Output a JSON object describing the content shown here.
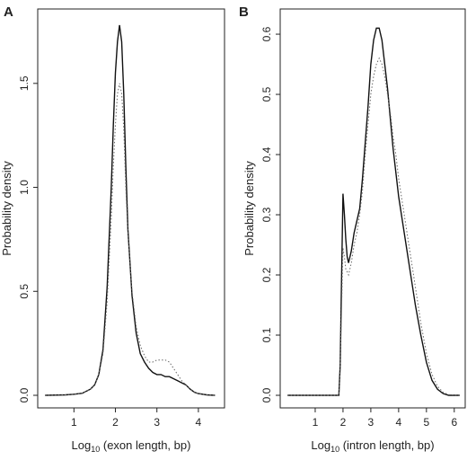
{
  "chart_data": [
    {
      "type": "line",
      "panel_label": "A",
      "title": "",
      "xlabel_prefix": "Log",
      "xlabel_sub": "10",
      "xlabel_rest": " (exon length, bp)",
      "ylabel": "Probability density",
      "xlim": [
        0.3,
        4.5
      ],
      "ylim": [
        0,
        1.78
      ],
      "xticks": [
        1,
        2,
        3,
        4
      ],
      "yticks": [
        0.0,
        0.5,
        1.0,
        1.5
      ],
      "ytick_labels": [
        "0.0",
        "0.5",
        "1.0",
        "1.5"
      ],
      "legend": "none",
      "grid": false,
      "series": [
        {
          "style": "solid",
          "x": [
            0.3,
            0.8,
            1.0,
            1.2,
            1.4,
            1.5,
            1.6,
            1.7,
            1.8,
            1.9,
            1.95,
            2.0,
            2.05,
            2.1,
            2.15,
            2.2,
            2.25,
            2.3,
            2.4,
            2.5,
            2.6,
            2.7,
            2.8,
            2.9,
            3.0,
            3.1,
            3.2,
            3.3,
            3.4,
            3.5,
            3.6,
            3.7,
            3.8,
            3.9,
            4.0,
            4.2,
            4.4
          ],
          "y": [
            0.0,
            0.002,
            0.005,
            0.01,
            0.03,
            0.05,
            0.1,
            0.22,
            0.52,
            1.0,
            1.3,
            1.55,
            1.7,
            1.78,
            1.7,
            1.45,
            1.1,
            0.8,
            0.48,
            0.3,
            0.2,
            0.16,
            0.13,
            0.11,
            0.1,
            0.1,
            0.09,
            0.09,
            0.08,
            0.07,
            0.06,
            0.05,
            0.03,
            0.015,
            0.008,
            0.002,
            0.0
          ]
        },
        {
          "style": "dotted",
          "x": [
            0.3,
            0.8,
            1.0,
            1.2,
            1.4,
            1.5,
            1.6,
            1.7,
            1.8,
            1.9,
            1.95,
            2.0,
            2.05,
            2.1,
            2.15,
            2.2,
            2.25,
            2.3,
            2.4,
            2.5,
            2.6,
            2.7,
            2.8,
            2.9,
            3.0,
            3.1,
            3.2,
            3.3,
            3.4,
            3.5,
            3.6,
            3.7,
            3.8,
            3.9,
            4.0,
            4.2,
            4.4
          ],
          "y": [
            0.0,
            0.002,
            0.005,
            0.01,
            0.03,
            0.05,
            0.1,
            0.2,
            0.45,
            0.85,
            1.1,
            1.3,
            1.45,
            1.5,
            1.45,
            1.28,
            1.0,
            0.78,
            0.5,
            0.33,
            0.24,
            0.19,
            0.16,
            0.16,
            0.17,
            0.17,
            0.17,
            0.16,
            0.13,
            0.1,
            0.07,
            0.05,
            0.03,
            0.015,
            0.008,
            0.002,
            0.0
          ]
        }
      ]
    },
    {
      "type": "line",
      "panel_label": "B",
      "title": "",
      "xlabel_prefix": "Log",
      "xlabel_sub": "10",
      "xlabel_rest": " (intron length, bp)",
      "ylabel": "Probability density",
      "xlim": [
        0.0,
        6.2
      ],
      "ylim": [
        0,
        0.615
      ],
      "xticks": [
        1,
        2,
        3,
        4,
        5,
        6
      ],
      "yticks": [
        0.0,
        0.1,
        0.2,
        0.3,
        0.4,
        0.5,
        0.6
      ],
      "ytick_labels": [
        "0.0",
        "0.1",
        "0.2",
        "0.3",
        "0.4",
        "0.5",
        "0.6"
      ],
      "legend": "none",
      "grid": false,
      "series": [
        {
          "style": "solid",
          "x": [
            0.0,
            1.5,
            1.85,
            1.9,
            1.95,
            2.0,
            2.05,
            2.1,
            2.15,
            2.2,
            2.3,
            2.4,
            2.5,
            2.6,
            2.7,
            2.8,
            2.9,
            3.0,
            3.1,
            3.2,
            3.3,
            3.4,
            3.5,
            3.6,
            3.7,
            3.8,
            3.9,
            4.0,
            4.2,
            4.4,
            4.6,
            4.8,
            5.0,
            5.2,
            5.4,
            5.6,
            5.8,
            6.2
          ],
          "y": [
            0.0,
            0.0,
            0.0,
            0.05,
            0.2,
            0.335,
            0.3,
            0.26,
            0.23,
            0.22,
            0.24,
            0.27,
            0.29,
            0.31,
            0.36,
            0.42,
            0.48,
            0.55,
            0.59,
            0.61,
            0.61,
            0.59,
            0.55,
            0.51,
            0.46,
            0.41,
            0.37,
            0.33,
            0.27,
            0.21,
            0.15,
            0.1,
            0.055,
            0.025,
            0.01,
            0.003,
            0.0,
            0.0
          ]
        },
        {
          "style": "dotted",
          "x": [
            0.0,
            1.5,
            1.85,
            1.9,
            1.95,
            2.0,
            2.05,
            2.1,
            2.15,
            2.2,
            2.3,
            2.4,
            2.5,
            2.6,
            2.7,
            2.8,
            2.9,
            3.0,
            3.1,
            3.2,
            3.3,
            3.4,
            3.5,
            3.6,
            3.7,
            3.8,
            3.9,
            4.0,
            4.2,
            4.4,
            4.6,
            4.8,
            5.0,
            5.2,
            5.4,
            5.6,
            5.8,
            6.2
          ],
          "y": [
            0.0,
            0.0,
            0.0,
            0.04,
            0.15,
            0.245,
            0.23,
            0.21,
            0.205,
            0.2,
            0.22,
            0.25,
            0.27,
            0.3,
            0.34,
            0.4,
            0.45,
            0.5,
            0.53,
            0.55,
            0.56,
            0.55,
            0.53,
            0.5,
            0.47,
            0.43,
            0.4,
            0.36,
            0.3,
            0.24,
            0.18,
            0.12,
            0.07,
            0.035,
            0.015,
            0.005,
            0.001,
            0.0
          ]
        }
      ]
    }
  ]
}
